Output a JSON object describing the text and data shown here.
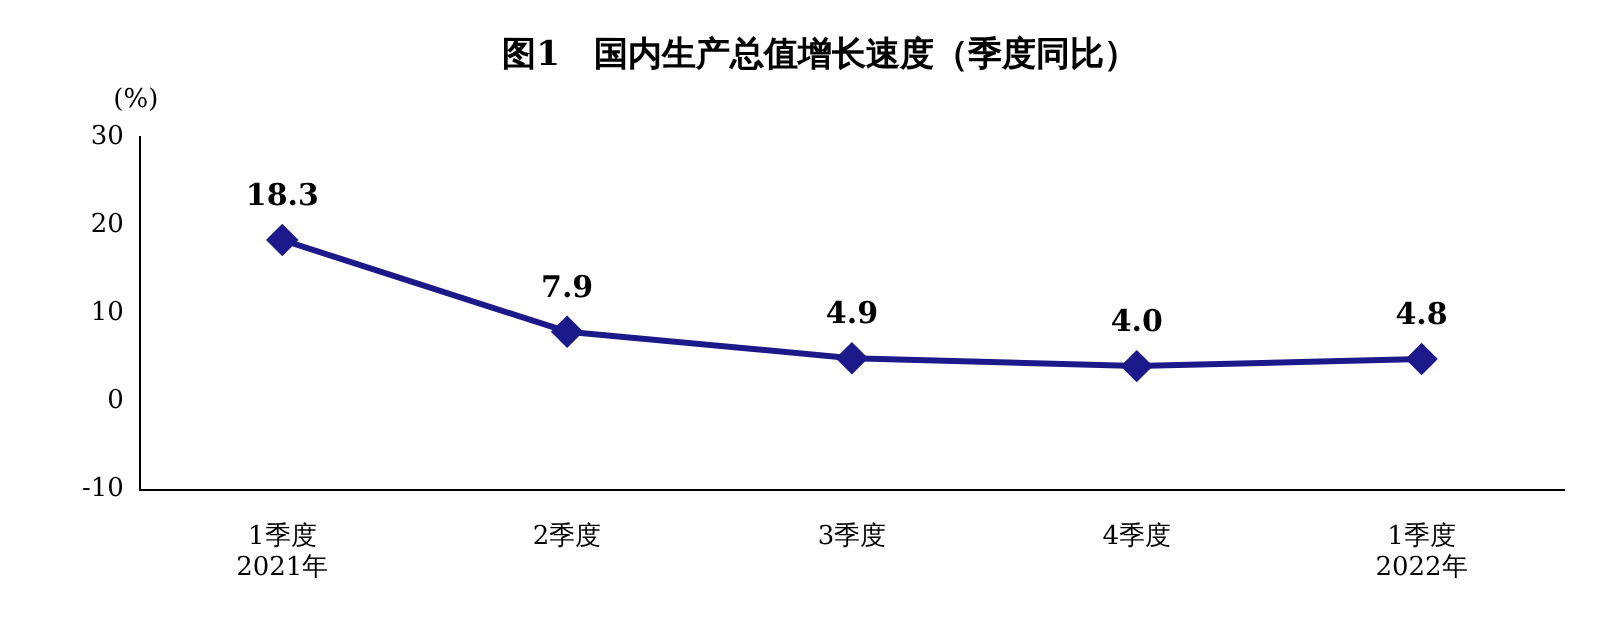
{
  "chart_data": {
    "type": "line",
    "title": "图1　国内生产总值增长速度（季度同比）",
    "ylabel": "(%)",
    "categories": [
      "1季度\n2021年",
      "2季度",
      "3季度",
      "4季度",
      "1季度\n2022年"
    ],
    "series": [
      {
        "color": "#1c1a8a",
        "values": [
          18.3,
          7.9,
          4.9,
          4.0,
          4.8
        ],
        "value_labels": [
          "18.3",
          "7.9",
          "4.9",
          "4.0",
          "4.8"
        ]
      }
    ],
    "ylim": [
      -10,
      30
    ],
    "yticks": [
      -10,
      0,
      10,
      20,
      30
    ],
    "grid": false,
    "legend": false,
    "marker": "diamond",
    "line_style": "solid"
  }
}
